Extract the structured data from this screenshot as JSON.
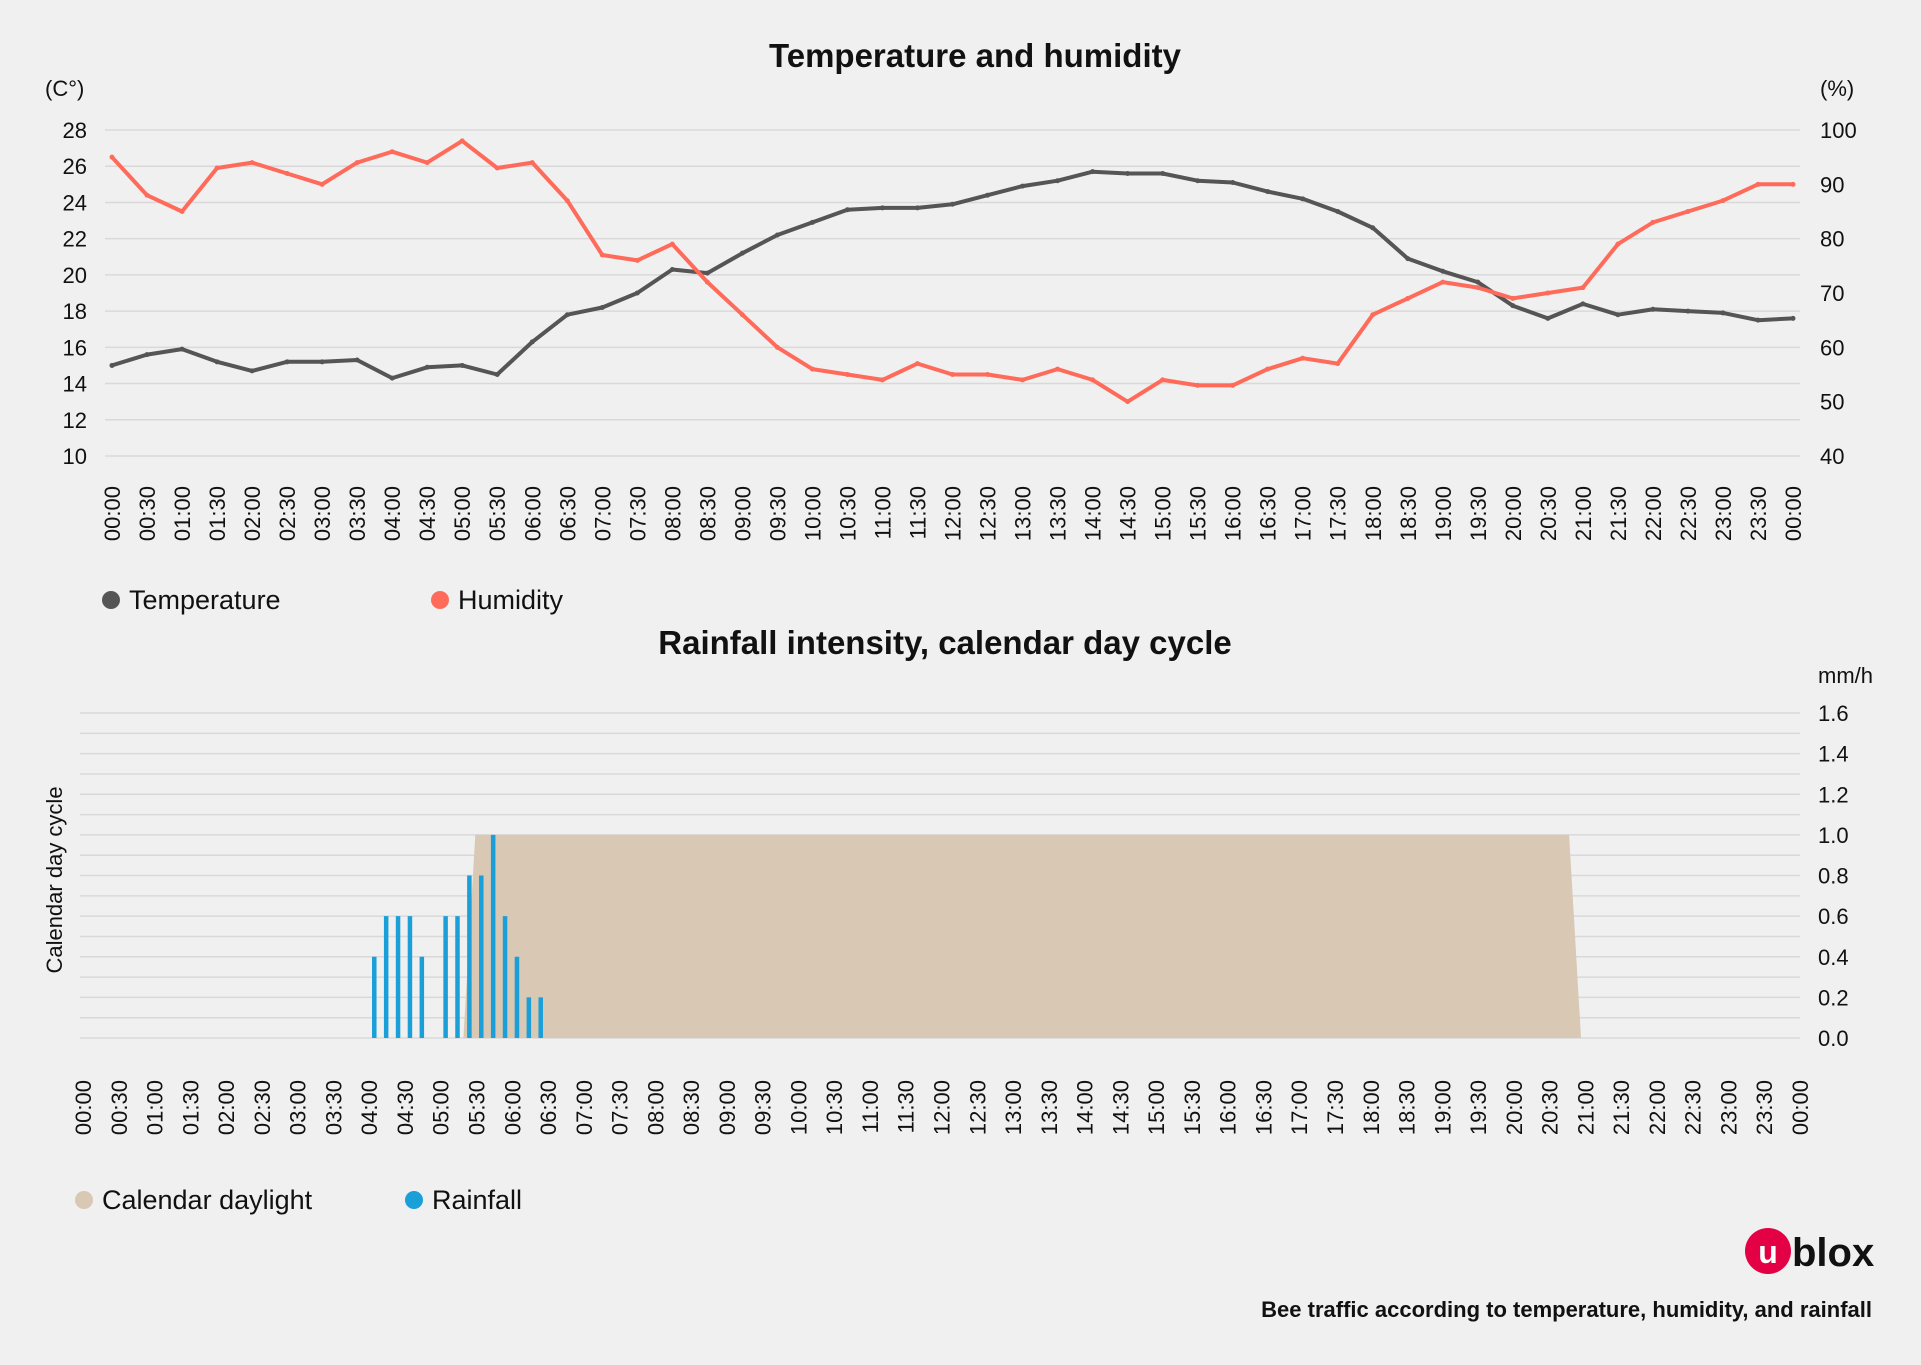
{
  "colors": {
    "temperature": "#555555",
    "humidity": "#ff6b5a",
    "daylight": "#d8c8b4",
    "rainfall": "#1a9fd9",
    "logo": "#e30045"
  },
  "footer": {
    "caption": "Bee traffic according to temperature, humidity, and rainfall",
    "logo_text": "blox"
  },
  "chart_data": [
    {
      "type": "line",
      "title": "Temperature and humidity",
      "ylabel_left": "(C°)",
      "ylabel_right": "(%)",
      "ylim_left": [
        10,
        28
      ],
      "ylim_right": [
        40,
        100
      ],
      "yticks_left": [
        "28",
        "26",
        "24",
        "22",
        "20",
        "18",
        "16",
        "14",
        "12",
        "10"
      ],
      "yticks_right": [
        "100",
        "90",
        "80",
        "70",
        "60",
        "50",
        "40"
      ],
      "grid": true,
      "legend_position": "bottom-left",
      "x": [
        "00:00",
        "00:30",
        "01:00",
        "01:30",
        "02:00",
        "02:30",
        "03:00",
        "03:30",
        "04:00",
        "04:30",
        "05:00",
        "05:30",
        "06:00",
        "06:30",
        "07:00",
        "07:30",
        "08:00",
        "08:30",
        "09:00",
        "09:30",
        "10:00",
        "10:30",
        "11:00",
        "11:30",
        "12:00",
        "12:30",
        "13:00",
        "13:30",
        "14:00",
        "14:30",
        "15:00",
        "15:30",
        "16:00",
        "16:30",
        "17:00",
        "17:30",
        "18:00",
        "18:30",
        "19:00",
        "19:30",
        "20:00",
        "20:30",
        "21:00",
        "21:30",
        "22:00",
        "22:30",
        "23:00",
        "23:30",
        "00:00"
      ],
      "series": [
        {
          "name": "Temperature",
          "axis": "left",
          "values": [
            15.0,
            15.6,
            15.9,
            15.2,
            14.7,
            15.2,
            15.2,
            15.3,
            14.3,
            14.9,
            15.0,
            14.5,
            16.3,
            17.8,
            18.2,
            19.0,
            20.3,
            20.1,
            21.2,
            22.2,
            22.9,
            23.6,
            23.7,
            23.7,
            23.9,
            24.4,
            24.9,
            25.2,
            25.7,
            25.6,
            25.6,
            25.2,
            25.1,
            24.6,
            24.2,
            23.5,
            22.6,
            20.9,
            20.2,
            19.6,
            18.3,
            17.6,
            18.4,
            17.8,
            18.1,
            18.0,
            17.9,
            17.5,
            17.6
          ]
        },
        {
          "name": "Humidity",
          "axis": "right",
          "values": [
            95,
            88,
            85,
            93,
            94,
            92,
            90,
            94,
            96,
            94,
            98,
            93,
            94,
            87,
            77,
            76,
            79,
            72,
            66,
            60,
            56,
            55,
            54,
            57,
            55,
            55,
            54,
            56,
            54,
            50,
            54,
            53,
            53,
            56,
            58,
            57,
            66,
            69,
            72,
            71,
            69,
            70,
            71,
            79,
            83,
            85,
            87,
            90,
            90
          ]
        }
      ]
    },
    {
      "type": "bar",
      "title": "Rainfall intensity, calendar day cycle",
      "ylabel_left": "Calendar day cycle",
      "ylabel_right": "mm/h",
      "ylim": [
        0,
        1.6
      ],
      "yticks": [
        "1.6",
        "1.4",
        "1.2",
        "1.0",
        "0.8",
        "0.6",
        "0.4",
        "0.2",
        "0.0"
      ],
      "grid": true,
      "legend_position": "bottom-left",
      "x": [
        "00:00",
        "00:30",
        "01:00",
        "01:30",
        "02:00",
        "02:30",
        "03:00",
        "03:30",
        "04:00",
        "04:30",
        "05:00",
        "05:30",
        "06:00",
        "06:30",
        "07:00",
        "07:30",
        "08:00",
        "08:30",
        "09:00",
        "09:30",
        "10:00",
        "10:30",
        "11:00",
        "11:30",
        "12:00",
        "12:30",
        "13:00",
        "13:30",
        "14:00",
        "14:30",
        "15:00",
        "15:30",
        "16:00",
        "16:30",
        "17:00",
        "17:30",
        "18:00",
        "18:30",
        "19:00",
        "19:30",
        "20:00",
        "20:30",
        "21:00",
        "21:30",
        "22:00",
        "22:30",
        "23:00",
        "23:30",
        "00:00"
      ],
      "daylight": {
        "name": "Calendar daylight",
        "value": 1.0,
        "rise_start": "05:20",
        "rise_end": "05:30",
        "set_start": "20:50",
        "set_end": "21:00"
      },
      "rainfall": {
        "name": "Rainfall",
        "times": [
          "04:00",
          "04:10",
          "04:20",
          "04:30",
          "04:40",
          "05:00",
          "05:10",
          "05:20",
          "05:30",
          "05:40",
          "05:50",
          "06:00",
          "06:10",
          "06:20"
        ],
        "values": [
          0.4,
          0.6,
          0.6,
          0.6,
          0.4,
          0.6,
          0.6,
          0.8,
          0.8,
          1.0,
          0.6,
          0.4,
          0.2,
          0.2
        ]
      }
    }
  ]
}
